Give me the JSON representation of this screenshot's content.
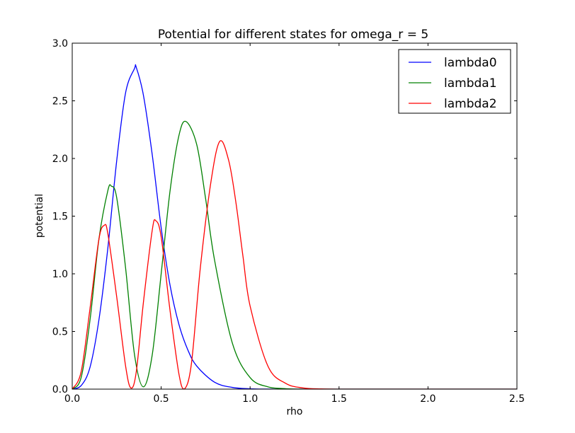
{
  "chart_data": {
    "type": "line",
    "title": "Potential for different states for omega_r = 5",
    "xlabel": "rho",
    "ylabel": "potential",
    "xlim": [
      0.0,
      2.5
    ],
    "ylim": [
      0.0,
      3.0
    ],
    "xticks": [
      "0.0",
      "0.5",
      "1.0",
      "1.5",
      "2.0",
      "2.5"
    ],
    "yticks": [
      "0.0",
      "0.5",
      "1.0",
      "1.5",
      "2.0",
      "2.5",
      "3.0"
    ],
    "legend_position": "top-right",
    "grid": false,
    "series": [
      {
        "name": "lambda0",
        "color": "#0000ff",
        "x": [
          0.0,
          0.05,
          0.1,
          0.15,
          0.2,
          0.25,
          0.3,
          0.35,
          0.36,
          0.4,
          0.45,
          0.5,
          0.55,
          0.6,
          0.65,
          0.7,
          0.8,
          0.9,
          1.0,
          1.1,
          1.2
        ],
        "y": [
          0.0,
          0.03,
          0.19,
          0.6,
          1.22,
          1.98,
          2.57,
          2.78,
          2.79,
          2.55,
          2.03,
          1.4,
          0.9,
          0.56,
          0.34,
          0.2,
          0.06,
          0.015,
          0.003,
          0.0005,
          0.0
        ]
      },
      {
        "name": "lambda1",
        "color": "#008000",
        "x": [
          0.0,
          0.05,
          0.1,
          0.15,
          0.2,
          0.22,
          0.25,
          0.3,
          0.35,
          0.4,
          0.45,
          0.5,
          0.55,
          0.6,
          0.64,
          0.7,
          0.75,
          0.8,
          0.9,
          1.0,
          1.1,
          1.2,
          1.3
        ],
        "y": [
          0.0,
          0.1,
          0.6,
          1.3,
          1.72,
          1.76,
          1.66,
          1.05,
          0.3,
          0.02,
          0.3,
          1.0,
          1.72,
          2.2,
          2.32,
          2.12,
          1.65,
          1.12,
          0.4,
          0.1,
          0.02,
          0.004,
          0.0
        ]
      },
      {
        "name": "lambda2",
        "color": "#ff0000",
        "x": [
          0.0,
          0.05,
          0.1,
          0.15,
          0.18,
          0.2,
          0.25,
          0.3,
          0.33,
          0.36,
          0.4,
          0.45,
          0.47,
          0.5,
          0.55,
          0.6,
          0.63,
          0.67,
          0.72,
          0.78,
          0.83,
          0.88,
          0.92,
          0.96,
          1.0,
          1.1,
          1.2,
          1.3,
          1.4,
          1.5
        ],
        "y": [
          0.0,
          0.15,
          0.7,
          1.3,
          1.42,
          1.35,
          0.8,
          0.2,
          0.01,
          0.15,
          0.75,
          1.38,
          1.46,
          1.32,
          0.68,
          0.13,
          0.0,
          0.22,
          1.05,
          1.8,
          2.15,
          1.98,
          1.62,
          1.15,
          0.72,
          0.2,
          0.05,
          0.01,
          0.002,
          0.0
        ]
      }
    ]
  }
}
